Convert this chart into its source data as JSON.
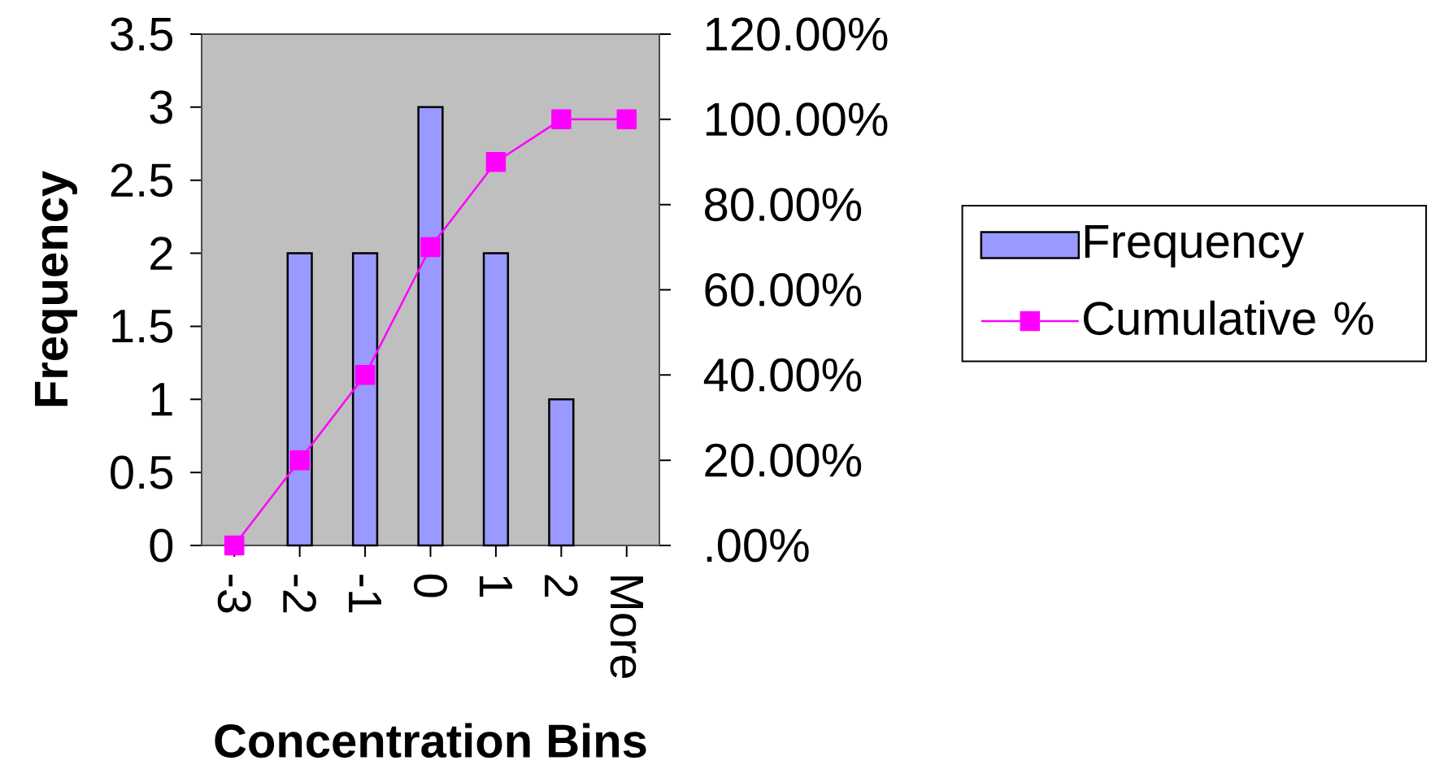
{
  "chart_data": {
    "type": "bar",
    "categories": [
      "-3",
      "-2",
      "-1",
      "0",
      "1",
      "2",
      "More"
    ],
    "series": [
      {
        "name": "Frequency",
        "color": "#9999ff",
        "values": [
          0,
          2,
          2,
          3,
          2,
          1,
          0
        ]
      },
      {
        "name": "Cumulative %",
        "type": "line",
        "axis": "y2",
        "color": "#ff00ff",
        "marker": "square",
        "values": [
          0,
          20,
          40,
          70,
          90,
          100,
          100
        ]
      }
    ],
    "xlabel": "Concentration Bins",
    "ylabel": "Frequency",
    "ylim": [
      0,
      3.5
    ],
    "yticks": [
      0,
      0.5,
      1,
      1.5,
      2,
      2.5,
      3,
      3.5
    ],
    "y2lim": [
      0,
      120
    ],
    "y2ticks": [
      {
        "value": 0,
        "label": ".00%"
      },
      {
        "value": 20,
        "label": "20.00%"
      },
      {
        "value": 40,
        "label": "40.00%"
      },
      {
        "value": 60,
        "label": "60.00%"
      },
      {
        "value": 80,
        "label": "80.00%"
      },
      {
        "value": 100,
        "label": "100.00%"
      },
      {
        "value": 120,
        "label": "120.00%"
      }
    ],
    "legend": "right"
  }
}
